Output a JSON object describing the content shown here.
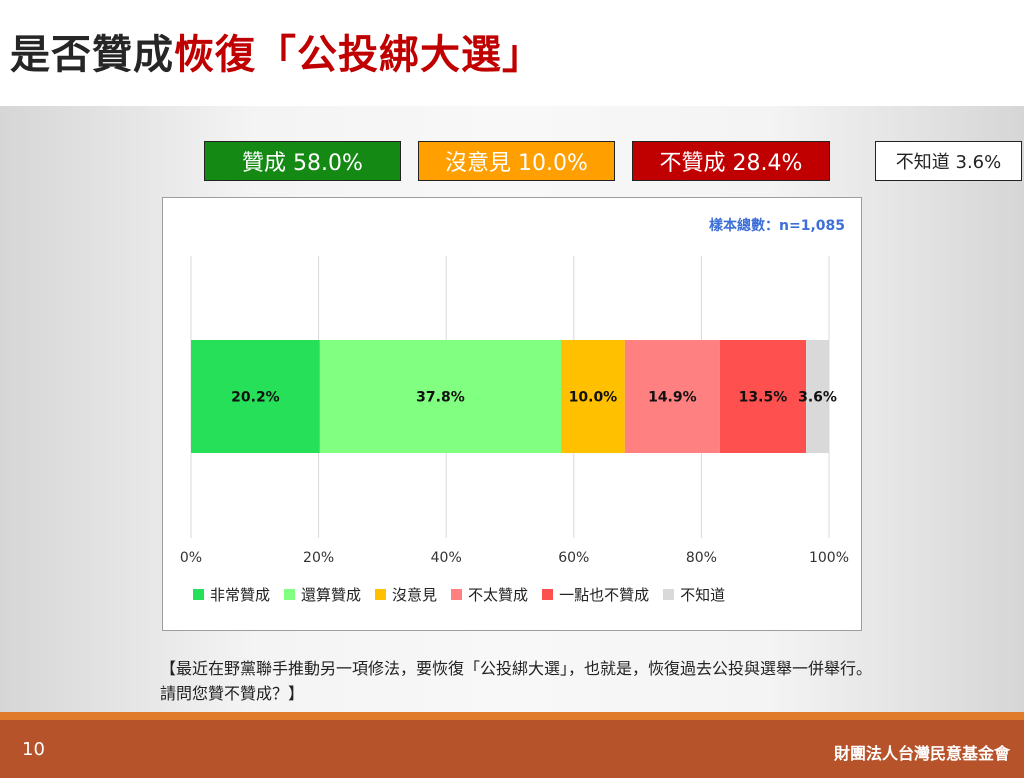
{
  "title": {
    "part1": "是否贊成",
    "part2": "恢復「公投綁大選」"
  },
  "summary": {
    "agree": "贊成 58.0%",
    "neutral": "沒意見 10.0%",
    "disagree": "不贊成 28.4%",
    "unknown": "不知道 3.6%"
  },
  "sample": "樣本總數：n=1,085",
  "chart_data": {
    "type": "bar",
    "orientation": "horizontal-stacked",
    "x_ticks": [
      "0%",
      "20%",
      "40%",
      "60%",
      "80%",
      "100%"
    ],
    "xlim": [
      0,
      100
    ],
    "grid": true,
    "legend_position": "bottom",
    "series": [
      {
        "name": "非常贊成",
        "value": 20.2,
        "label": "20.2%",
        "color": "#26e05a"
      },
      {
        "name": "還算贊成",
        "value": 37.8,
        "label": "37.8%",
        "color": "#80ff80"
      },
      {
        "name": "沒意見",
        "value": 10.0,
        "label": "10.0%",
        "color": "#ffc000"
      },
      {
        "name": "不太贊成",
        "value": 14.9,
        "label": "14.9%",
        "color": "#ff8080"
      },
      {
        "name": "一點也不贊成",
        "value": 13.5,
        "label": "13.5%",
        "color": "#ff5050"
      },
      {
        "name": "不知道",
        "value": 3.6,
        "label": "3.6%",
        "color": "#d9d9d9"
      }
    ]
  },
  "note": "【最近在野黨聯手推動另一項修法，要恢復「公投綁大選」，也就是，恢復過去公投與選舉一併舉行。請問您贊不贊成？】",
  "footer": {
    "page": "10",
    "org": "財團法人台灣民意基金會"
  }
}
